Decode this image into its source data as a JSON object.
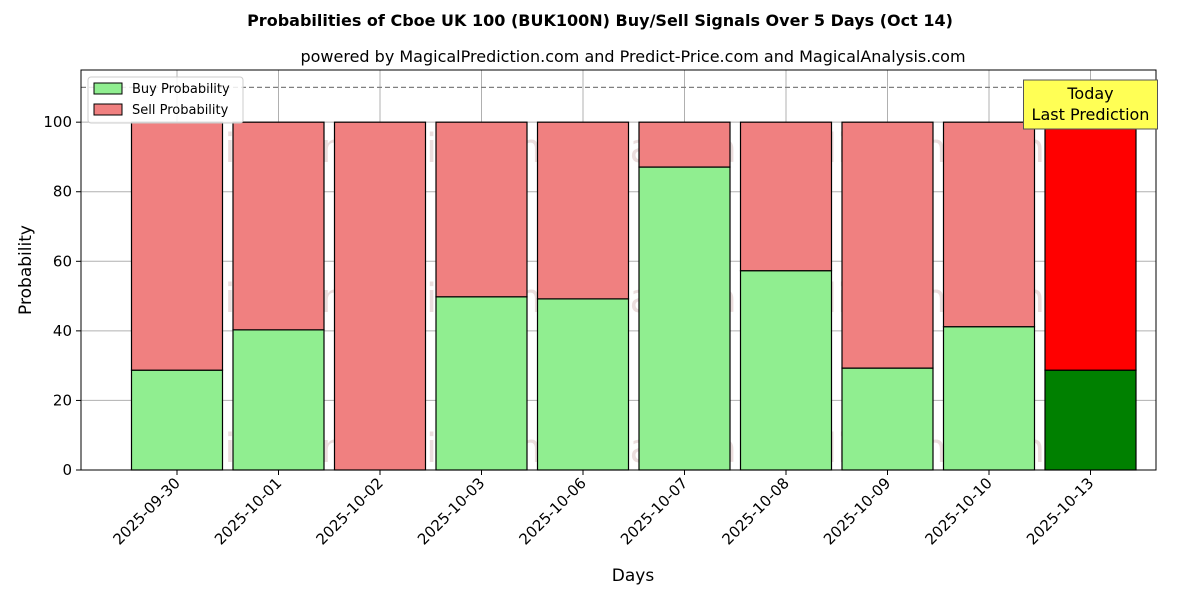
{
  "chart_data": {
    "type": "bar",
    "stacked": true,
    "title": "Probabilities of Cboe UK 100 (BUK100N) Buy/Sell Signals Over 5 Days (Oct 14)",
    "subtitle": "powered by MagicalPrediction.com and Predict-Price.com and MagicalAnalysis.com",
    "xlabel": "Days",
    "ylabel": "Probability",
    "ylim": [
      0,
      115
    ],
    "yticks": [
      0,
      20,
      40,
      60,
      80,
      100
    ],
    "grid": true,
    "legend_position": "top-left",
    "categories": [
      "2025-09-30",
      "2025-10-01",
      "2025-10-02",
      "2025-10-03",
      "2025-10-06",
      "2025-10-07",
      "2025-10-08",
      "2025-10-09",
      "2025-10-10",
      "2025-10-13"
    ],
    "series": [
      {
        "name": "Buy Probability",
        "values": [
          28.7,
          40.3,
          0,
          49.8,
          49.2,
          87.1,
          57.3,
          29.3,
          41.2,
          28.7
        ]
      },
      {
        "name": "Sell Probability",
        "values": [
          71.3,
          59.7,
          100,
          50.2,
          50.8,
          12.9,
          42.7,
          70.7,
          58.8,
          71.3
        ]
      }
    ],
    "reference_line": {
      "y": 110,
      "style": "dashed"
    },
    "annotation": {
      "lines": [
        "Today",
        "Last Prediction"
      ],
      "category": "2025-10-13"
    },
    "watermarks": [
      "MagicalAnalysis.com",
      "MagicalPrediction.com"
    ],
    "colors": {
      "buy": "#90ee90",
      "sell": "#f08080",
      "buy_highlight": "#008000",
      "sell_highlight": "#ff0000",
      "annotation_bg": "#ffff55"
    }
  }
}
